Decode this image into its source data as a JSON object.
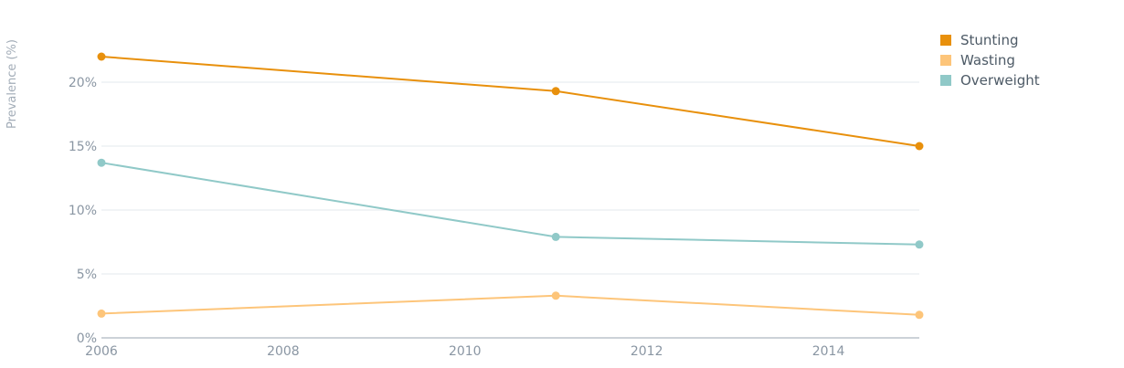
{
  "chart_data": {
    "type": "line",
    "title": "",
    "xlabel": "",
    "ylabel": "Prevalence (%)",
    "x_ticks": [
      "2006",
      "2008",
      "2010",
      "2012",
      "2014"
    ],
    "y_ticks": [
      "0%",
      "5%",
      "10%",
      "15%",
      "20%"
    ],
    "xlim": [
      2006,
      2015
    ],
    "ylim": [
      0,
      23.5
    ],
    "grid": true,
    "legend_position": "top-right",
    "series": [
      {
        "name": "Stunting",
        "color": "#e8900c",
        "x": [
          2006,
          2011,
          2015
        ],
        "values": [
          22.0,
          19.3,
          15.0
        ]
      },
      {
        "name": "Wasting",
        "color": "#fdc57a",
        "x": [
          2006,
          2011,
          2015
        ],
        "values": [
          1.9,
          3.3,
          1.8
        ]
      },
      {
        "name": "Overweight",
        "color": "#90c9c8",
        "x": [
          2006,
          2011,
          2015
        ],
        "values": [
          13.7,
          7.9,
          7.3
        ]
      }
    ]
  }
}
